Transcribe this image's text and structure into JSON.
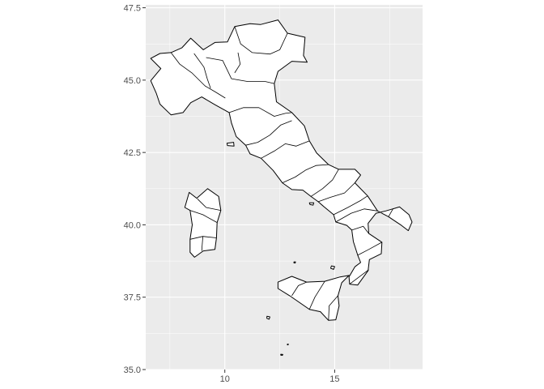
{
  "chart_data": {
    "type": "map",
    "title": "",
    "xlabel": "",
    "ylabel": "",
    "xlim": [
      6.4,
      19.0
    ],
    "ylim": [
      35.0,
      47.6
    ],
    "x_ticks": [
      10,
      15
    ],
    "x_tick_labels": [
      "10",
      "15"
    ],
    "y_ticks": [
      35.0,
      37.5,
      40.0,
      42.5,
      45.0,
      47.5
    ],
    "y_tick_labels": [
      "35.0",
      "37.5",
      "40.0",
      "42.5",
      "45.0",
      "47.5"
    ],
    "grid": true,
    "panel_background": "#ebebeb",
    "fill_color": "#ffffff",
    "outline_color": "#000000",
    "regions": [
      {
        "name": "mainland",
        "lonlat": [
          [
            7.05,
            45.92
          ],
          [
            6.63,
            45.75
          ],
          [
            7.09,
            45.4
          ],
          [
            6.63,
            44.98
          ],
          [
            6.88,
            44.55
          ],
          [
            7.05,
            44.17
          ],
          [
            7.55,
            43.8
          ],
          [
            8.1,
            43.88
          ],
          [
            8.45,
            44.22
          ],
          [
            8.95,
            44.42
          ],
          [
            9.55,
            44.15
          ],
          [
            10.2,
            43.88
          ],
          [
            10.3,
            43.52
          ],
          [
            10.52,
            43.05
          ],
          [
            10.95,
            42.75
          ],
          [
            11.15,
            42.45
          ],
          [
            11.65,
            42.3
          ],
          [
            12.2,
            41.88
          ],
          [
            12.62,
            41.45
          ],
          [
            13.05,
            41.22
          ],
          [
            13.55,
            41.2
          ],
          [
            13.92,
            40.98
          ],
          [
            14.25,
            40.8
          ],
          [
            14.52,
            40.62
          ],
          [
            14.95,
            40.35
          ],
          [
            15.05,
            40.1
          ],
          [
            15.55,
            39.98
          ],
          [
            15.78,
            39.82
          ],
          [
            15.85,
            39.42
          ],
          [
            16.05,
            38.95
          ],
          [
            16.18,
            38.7
          ],
          [
            15.92,
            38.55
          ],
          [
            15.65,
            38.2
          ],
          [
            15.68,
            37.95
          ],
          [
            16.05,
            37.92
          ],
          [
            16.52,
            38.42
          ],
          [
            16.58,
            38.8
          ],
          [
            17.12,
            39.0
          ],
          [
            17.15,
            39.4
          ],
          [
            16.55,
            39.7
          ],
          [
            16.52,
            40.05
          ],
          [
            16.88,
            40.4
          ],
          [
            17.32,
            40.48
          ],
          [
            17.95,
            40.62
          ],
          [
            18.38,
            40.35
          ],
          [
            18.52,
            40.1
          ],
          [
            18.35,
            39.8
          ],
          [
            18.0,
            40.0
          ],
          [
            17.45,
            40.28
          ],
          [
            16.95,
            40.48
          ],
          [
            16.5,
            41.0
          ],
          [
            15.92,
            41.45
          ],
          [
            16.18,
            41.72
          ],
          [
            15.92,
            41.92
          ],
          [
            15.18,
            41.92
          ],
          [
            14.72,
            42.08
          ],
          [
            14.18,
            42.48
          ],
          [
            13.85,
            42.9
          ],
          [
            13.62,
            43.42
          ],
          [
            13.05,
            43.88
          ],
          [
            12.35,
            44.25
          ],
          [
            12.25,
            44.88
          ],
          [
            12.42,
            45.3
          ],
          [
            13.05,
            45.65
          ],
          [
            13.75,
            45.62
          ],
          [
            13.58,
            45.85
          ],
          [
            13.65,
            46.48
          ],
          [
            12.85,
            46.62
          ],
          [
            12.42,
            47.08
          ],
          [
            11.62,
            46.92
          ],
          [
            11.15,
            46.95
          ],
          [
            10.45,
            46.85
          ],
          [
            10.12,
            46.32
          ],
          [
            9.55,
            46.3
          ],
          [
            9.02,
            46.05
          ],
          [
            8.45,
            46.45
          ],
          [
            8.05,
            46.12
          ],
          [
            7.55,
            45.95
          ],
          [
            7.05,
            45.92
          ]
        ]
      },
      {
        "name": "sicily",
        "lonlat": [
          [
            12.42,
            38.02
          ],
          [
            13.05,
            38.22
          ],
          [
            13.72,
            38.02
          ],
          [
            14.55,
            38.05
          ],
          [
            15.25,
            38.2
          ],
          [
            15.65,
            38.25
          ],
          [
            15.32,
            38.0
          ],
          [
            15.15,
            37.55
          ],
          [
            15.2,
            37.2
          ],
          [
            15.05,
            36.72
          ],
          [
            14.72,
            36.7
          ],
          [
            14.35,
            37.0
          ],
          [
            13.85,
            37.08
          ],
          [
            12.95,
            37.55
          ],
          [
            12.42,
            37.8
          ],
          [
            12.42,
            38.02
          ]
        ]
      },
      {
        "name": "sardinia",
        "lonlat": [
          [
            8.38,
            41.12
          ],
          [
            8.72,
            40.92
          ],
          [
            9.22,
            41.25
          ],
          [
            9.72,
            40.98
          ],
          [
            9.82,
            40.5
          ],
          [
            9.65,
            40.08
          ],
          [
            9.62,
            39.55
          ],
          [
            9.55,
            39.15
          ],
          [
            9.02,
            39.1
          ],
          [
            8.62,
            38.88
          ],
          [
            8.42,
            39.05
          ],
          [
            8.42,
            39.5
          ],
          [
            8.52,
            40.0
          ],
          [
            8.42,
            40.5
          ],
          [
            8.18,
            40.6
          ],
          [
            8.38,
            41.12
          ]
        ]
      },
      {
        "name": "elba",
        "lonlat": [
          [
            10.1,
            42.82
          ],
          [
            10.4,
            42.85
          ],
          [
            10.42,
            42.72
          ],
          [
            10.12,
            42.74
          ],
          [
            10.1,
            42.82
          ]
        ]
      },
      {
        "name": "capri-ischia",
        "lonlat": [
          [
            13.85,
            40.76
          ],
          [
            14.05,
            40.76
          ],
          [
            14.02,
            40.68
          ],
          [
            13.88,
            40.7
          ],
          [
            13.85,
            40.76
          ]
        ]
      },
      {
        "name": "ustica",
        "lonlat": [
          [
            13.15,
            38.72
          ],
          [
            13.22,
            38.72
          ],
          [
            13.2,
            38.68
          ],
          [
            13.14,
            38.69
          ],
          [
            13.15,
            38.72
          ]
        ]
      },
      {
        "name": "aeolian",
        "lonlat": [
          [
            14.85,
            38.58
          ],
          [
            15.0,
            38.56
          ],
          [
            14.95,
            38.46
          ],
          [
            14.82,
            38.5
          ],
          [
            14.85,
            38.58
          ]
        ]
      },
      {
        "name": "pantelleria",
        "lonlat": [
          [
            11.92,
            36.84
          ],
          [
            12.05,
            36.82
          ],
          [
            12.02,
            36.74
          ],
          [
            11.91,
            36.77
          ],
          [
            11.92,
            36.84
          ]
        ]
      },
      {
        "name": "lampedusa",
        "lonlat": [
          [
            12.55,
            35.53
          ],
          [
            12.64,
            35.52
          ],
          [
            12.62,
            35.49
          ],
          [
            12.54,
            35.5
          ],
          [
            12.55,
            35.53
          ]
        ]
      },
      {
        "name": "linosa",
        "lonlat": [
          [
            12.85,
            35.88
          ],
          [
            12.89,
            35.88
          ],
          [
            12.88,
            35.85
          ],
          [
            12.84,
            35.86
          ],
          [
            12.85,
            35.88
          ]
        ]
      }
    ],
    "internal_borders": [
      [
        [
          8.6,
          45.92
        ],
        [
          9.05,
          45.45
        ],
        [
          9.2,
          45.05
        ],
        [
          9.35,
          44.72
        ]
      ],
      [
        [
          7.55,
          45.95
        ],
        [
          7.95,
          45.55
        ],
        [
          8.5,
          45.25
        ],
        [
          9.1,
          44.8
        ],
        [
          9.55,
          44.6
        ],
        [
          10.02,
          44.38
        ]
      ],
      [
        [
          9.15,
          45.78
        ],
        [
          9.9,
          45.68
        ],
        [
          10.3,
          45.05
        ],
        [
          11.05,
          44.95
        ],
        [
          11.85,
          44.95
        ],
        [
          12.25,
          44.88
        ]
      ],
      [
        [
          10.45,
          46.85
        ],
        [
          10.72,
          46.25
        ],
        [
          11.25,
          45.95
        ],
        [
          12.05,
          45.9
        ],
        [
          12.5,
          46.05
        ],
        [
          12.85,
          46.62
        ]
      ],
      [
        [
          10.6,
          45.95
        ],
        [
          10.7,
          45.55
        ],
        [
          10.45,
          45.25
        ]
      ],
      [
        [
          10.2,
          43.88
        ],
        [
          10.85,
          44.05
        ],
        [
          11.55,
          44.05
        ],
        [
          12.25,
          43.75
        ],
        [
          12.75,
          43.85
        ],
        [
          13.05,
          43.88
        ]
      ],
      [
        [
          10.95,
          42.75
        ],
        [
          11.5,
          42.85
        ],
        [
          12.05,
          43.1
        ],
        [
          12.55,
          43.45
        ],
        [
          13.05,
          43.6
        ]
      ],
      [
        [
          11.65,
          42.3
        ],
        [
          12.25,
          42.55
        ],
        [
          12.75,
          42.8
        ],
        [
          13.25,
          42.72
        ],
        [
          13.85,
          42.9
        ]
      ],
      [
        [
          12.62,
          41.45
        ],
        [
          13.2,
          41.65
        ],
        [
          13.7,
          41.9
        ],
        [
          14.15,
          42.05
        ],
        [
          14.72,
          42.08
        ]
      ],
      [
        [
          13.92,
          40.98
        ],
        [
          14.45,
          41.25
        ],
        [
          14.9,
          41.55
        ],
        [
          15.18,
          41.92
        ]
      ],
      [
        [
          14.25,
          40.8
        ],
        [
          14.8,
          40.95
        ],
        [
          15.45,
          41.1
        ],
        [
          15.92,
          41.45
        ]
      ],
      [
        [
          14.95,
          40.35
        ],
        [
          15.6,
          40.6
        ],
        [
          16.2,
          40.85
        ],
        [
          16.5,
          41.0
        ]
      ],
      [
        [
          15.05,
          40.1
        ],
        [
          15.75,
          40.4
        ],
        [
          16.35,
          40.55
        ],
        [
          16.95,
          40.48
        ]
      ],
      [
        [
          15.78,
          39.82
        ],
        [
          16.3,
          39.95
        ],
        [
          16.55,
          39.7
        ]
      ],
      [
        [
          16.05,
          38.95
        ],
        [
          16.55,
          39.15
        ],
        [
          17.15,
          39.4
        ]
      ],
      [
        [
          15.68,
          37.95
        ],
        [
          16.2,
          38.25
        ],
        [
          16.55,
          38.45
        ]
      ],
      [
        [
          17.45,
          40.28
        ],
        [
          17.65,
          40.55
        ],
        [
          17.95,
          40.62
        ]
      ],
      [
        [
          13.05,
          37.55
        ],
        [
          13.35,
          37.9
        ],
        [
          13.72,
          38.02
        ]
      ],
      [
        [
          13.85,
          37.08
        ],
        [
          14.1,
          37.5
        ],
        [
          14.55,
          38.05
        ]
      ],
      [
        [
          14.72,
          36.7
        ],
        [
          14.75,
          37.2
        ],
        [
          15.15,
          37.55
        ]
      ],
      [
        [
          8.42,
          40.5
        ],
        [
          9.0,
          40.35
        ],
        [
          9.65,
          40.08
        ]
      ],
      [
        [
          8.42,
          39.5
        ],
        [
          9.0,
          39.6
        ],
        [
          9.62,
          39.55
        ]
      ],
      [
        [
          8.75,
          40.9
        ],
        [
          9.15,
          40.6
        ],
        [
          9.82,
          40.5
        ]
      ],
      [
        [
          9.0,
          39.6
        ],
        [
          8.95,
          39.1
        ]
      ]
    ]
  }
}
